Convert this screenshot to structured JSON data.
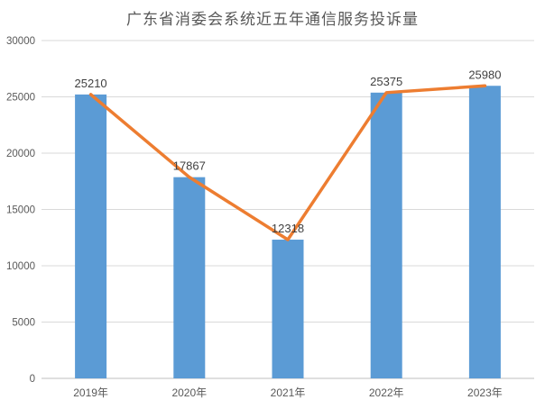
{
  "title": "广东省消委会系统近五年通信服务投诉量",
  "colors": {
    "bar": "#5B9BD5",
    "line": "#ED7D31",
    "gridline": "#D9D9D9",
    "axis_line": "#BFBFBF",
    "tick_text": "#595959",
    "data_label_text": "#404040",
    "title_text": "#595959",
    "background": "#FFFFFF"
  },
  "chart_data": {
    "type": "bar",
    "title": "广东省消委会系统近五年通信服务投诉量",
    "categories": [
      "2019年",
      "2020年",
      "2021年",
      "2022年",
      "2023年"
    ],
    "series": [
      {
        "type": "bar",
        "values": [
          25210,
          17867,
          12318,
          25375,
          25980
        ]
      },
      {
        "type": "line",
        "values": [
          25210,
          17867,
          12318,
          25375,
          25980
        ]
      }
    ],
    "data_labels": [
      "25210",
      "17867",
      "12318",
      "25375",
      "25980"
    ],
    "xlabel": "",
    "ylabel": "",
    "ylim": [
      0,
      30000
    ],
    "yticks": [
      0,
      5000,
      10000,
      15000,
      20000,
      25000,
      30000
    ],
    "grid": "horizontal",
    "legend": "none"
  }
}
